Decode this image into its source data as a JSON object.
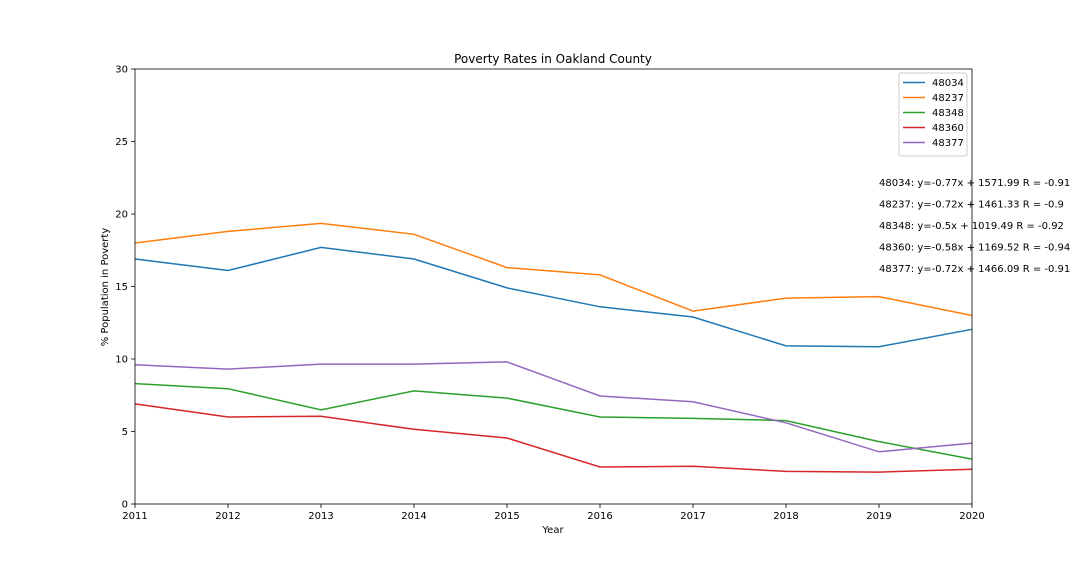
{
  "chart_data": {
    "type": "line",
    "title": "Poverty Rates in Oakland County",
    "xlabel": "Year",
    "ylabel": "% Population in Poverty",
    "x": [
      2011,
      2012,
      2013,
      2014,
      2015,
      2016,
      2017,
      2018,
      2019,
      2020
    ],
    "xlim": [
      2011,
      2020
    ],
    "ylim": [
      0,
      30
    ],
    "xticks": [
      "2011",
      "2012",
      "2013",
      "2014",
      "2015",
      "2016",
      "2017",
      "2018",
      "2019",
      "2020"
    ],
    "yticks": [
      "0",
      "5",
      "10",
      "15",
      "20",
      "25",
      "30"
    ],
    "grid": false,
    "legend_position": "top-right",
    "series": [
      {
        "name": "48034",
        "color": "#1f77b4",
        "values": [
          16.9,
          16.1,
          17.7,
          16.9,
          14.9,
          13.6,
          12.9,
          10.9,
          10.85,
          12.05
        ]
      },
      {
        "name": "48237",
        "color": "#ff7f0e",
        "values": [
          18.0,
          18.8,
          19.35,
          18.6,
          16.3,
          15.8,
          13.3,
          14.2,
          14.3,
          13.0
        ]
      },
      {
        "name": "48348",
        "color": "#2ca02c",
        "values": [
          8.3,
          7.95,
          6.5,
          7.8,
          7.3,
          6.0,
          5.9,
          5.75,
          4.3,
          3.1
        ]
      },
      {
        "name": "48360",
        "color": "#d62728",
        "values": [
          6.9,
          6.0,
          6.05,
          5.15,
          4.55,
          2.55,
          2.6,
          2.25,
          2.2,
          2.4
        ]
      },
      {
        "name": "48377",
        "color": "#9467bd",
        "values": [
          9.6,
          9.3,
          9.65,
          9.65,
          9.8,
          7.45,
          7.05,
          5.6,
          3.6,
          4.2
        ]
      }
    ],
    "annotations": [
      "48034: y=-0.77x + 1571.99 R = -0.91",
      "48237: y=-0.72x + 1461.33 R = -0.9",
      "48348: y=-0.5x + 1019.49 R = -0.92",
      "48360: y=-0.58x + 1169.52 R = -0.94",
      "48377: y=-0.72x + 1466.09 R = -0.91"
    ]
  }
}
